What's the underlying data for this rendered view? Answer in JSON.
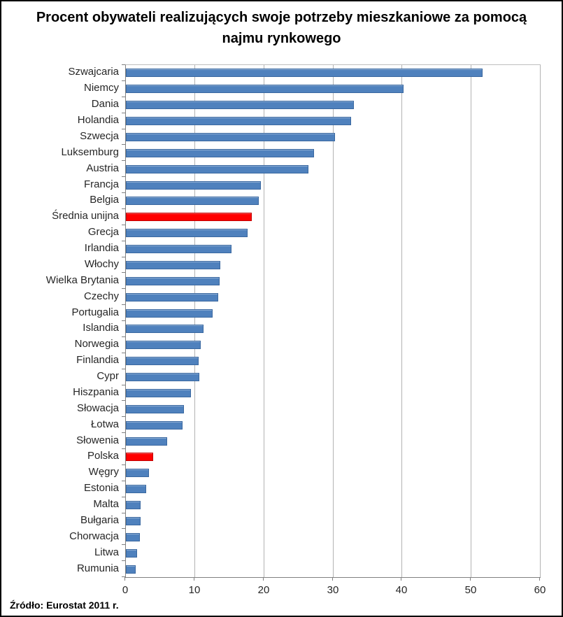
{
  "chart_data": {
    "type": "bar",
    "orientation": "horizontal",
    "title": "Procent obywateli realizujących swoje potrzeby mieszkaniowe za pomocą najmu rynkowego",
    "source": "Źródło: Eurostat 2011 r.",
    "xlabel": "",
    "ylabel": "",
    "xlim": [
      0,
      60
    ],
    "xticks": [
      0,
      10,
      20,
      30,
      40,
      50,
      60
    ],
    "grid": true,
    "legend": false,
    "bar_color": "#4F81BD",
    "bar_border_color": "#3A68A0",
    "highlight_color": "#FF0000",
    "highlight_border_color": "#C00000",
    "axis_color": "#808080",
    "gridline_color": "#B3B3B3",
    "categories": [
      "Szwajcaria",
      "Niemcy",
      "Dania",
      "Holandia",
      "Szwecja",
      "Luksemburg",
      "Austria",
      "Francja",
      "Belgia",
      "Średnia unijna",
      "Grecja",
      "Irlandia",
      "Włochy",
      "Wielka Brytania",
      "Czechy",
      "Portugalia",
      "Islandia",
      "Norwegia",
      "Finlandia",
      "Cypr",
      "Hiszpania",
      "Słowacja",
      "Łotwa",
      "Słowenia",
      "Polska",
      "Węgry",
      "Estonia",
      "Malta",
      "Bułgaria",
      "Chorwacja",
      "Litwa",
      "Rumunia"
    ],
    "values": [
      51.4,
      40.0,
      32.8,
      32.4,
      30.0,
      27.0,
      26.2,
      19.3,
      19.0,
      18.0,
      17.4,
      15.1,
      13.5,
      13.4,
      13.2,
      12.3,
      11.0,
      10.6,
      10.3,
      10.4,
      9.2,
      8.2,
      8.0,
      5.8,
      3.7,
      3.1,
      2.7,
      1.9,
      1.9,
      1.8,
      1.4,
      1.2
    ],
    "highlighted_categories": [
      "Średnia unijna",
      "Polska"
    ]
  }
}
